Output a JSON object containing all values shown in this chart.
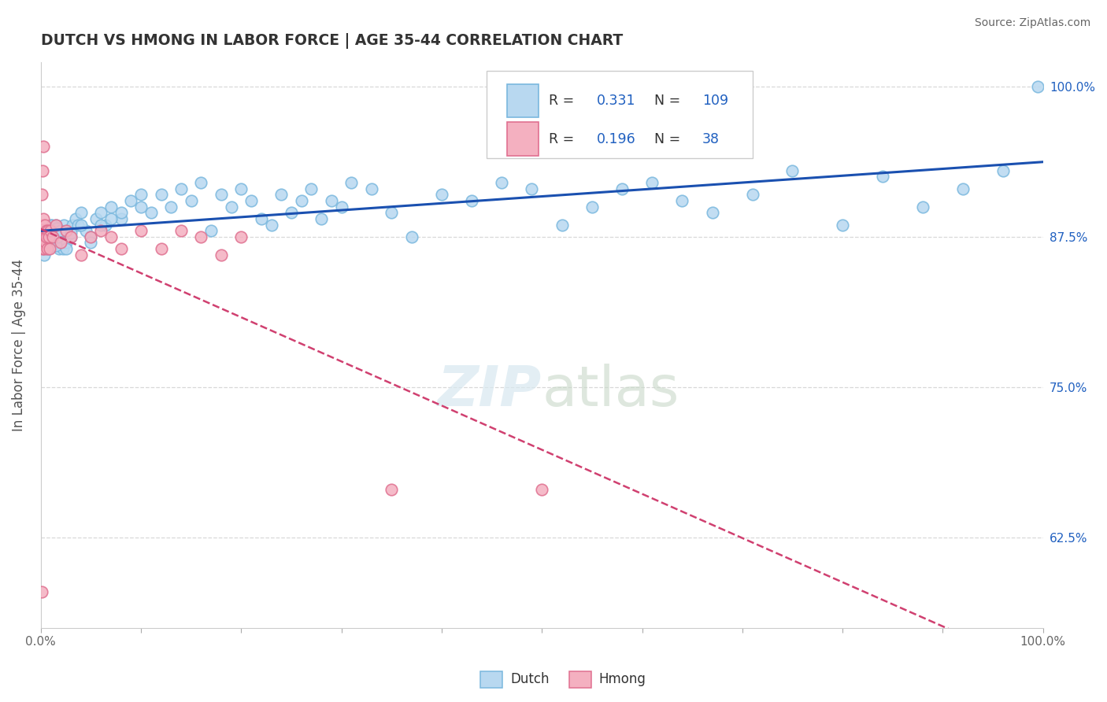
{
  "title": "DUTCH VS HMONG IN LABOR FORCE | AGE 35-44 CORRELATION CHART",
  "source": "Source: ZipAtlas.com",
  "ylabel": "In Labor Force | Age 35-44",
  "yticks": [
    62.5,
    75.0,
    87.5,
    100.0
  ],
  "ytick_labels": [
    "62.5%",
    "75.0%",
    "87.5%",
    "100.0%"
  ],
  "xmin": 0.0,
  "xmax": 100.0,
  "ymin": 55.0,
  "ymax": 102.0,
  "dutch_edge": "#7ab8de",
  "dutch_face": "#b8d8f0",
  "hmong_edge": "#e07090",
  "hmong_face": "#f4b0c0",
  "trend_dutch": "#1a50b0",
  "trend_hmong": "#d04070",
  "dutch_R": "0.331",
  "dutch_N": "109",
  "hmong_R": "0.196",
  "hmong_N": "38",
  "R_color": "#2060c0",
  "N_label_color": "#111111",
  "bg": "#ffffff",
  "grid_color": "#d8d8d8",
  "title_color": "#333333",
  "source_color": "#666666",
  "ylabel_color": "#555555",
  "tick_color": "#2060c0",
  "xtick_color": "#666666",
  "dutch_x": [
    0.1,
    0.15,
    0.2,
    0.25,
    0.3,
    0.35,
    0.4,
    0.5,
    0.5,
    0.6,
    0.7,
    0.8,
    0.9,
    1.0,
    1.0,
    1.1,
    1.2,
    1.3,
    1.4,
    1.5,
    1.6,
    1.7,
    1.8,
    1.9,
    2.0,
    2.1,
    2.2,
    2.3,
    2.5,
    2.7,
    3.0,
    3.2,
    3.5,
    3.7,
    4.0,
    4.5,
    5.0,
    5.5,
    6.0,
    6.5,
    7.0,
    8.0,
    9.0,
    10.0,
    11.0,
    12.0,
    13.0,
    14.0,
    15.0,
    16.0,
    17.0,
    18.0,
    19.0,
    20.0,
    21.0,
    22.0,
    23.0,
    24.0,
    25.0,
    26.0,
    27.0,
    28.0,
    29.0,
    30.0,
    31.0,
    33.0,
    35.0,
    37.0,
    40.0,
    43.0,
    46.0,
    49.0,
    52.0,
    55.0,
    58.0,
    61.0,
    64.0,
    67.0,
    71.0,
    75.0,
    80.0,
    84.0,
    88.0,
    92.0,
    96.0,
    99.5,
    0.3,
    0.4,
    0.5,
    0.6,
    0.7,
    0.8,
    0.9,
    1.0,
    1.1,
    1.2,
    1.3,
    1.4,
    1.5,
    1.6,
    1.7,
    2.0,
    2.5,
    3.0,
    4.0,
    5.0,
    6.0,
    7.0,
    8.0,
    10.0
  ],
  "dutch_y": [
    86.5,
    87.0,
    87.5,
    88.0,
    87.0,
    86.5,
    87.2,
    87.8,
    88.2,
    87.5,
    88.0,
    87.0,
    86.8,
    87.5,
    88.5,
    88.0,
    87.3,
    87.8,
    88.2,
    88.5,
    87.0,
    88.0,
    86.5,
    87.5,
    88.0,
    87.5,
    86.5,
    88.5,
    87.0,
    88.0,
    87.5,
    88.5,
    89.0,
    88.5,
    89.5,
    88.0,
    87.5,
    89.0,
    89.5,
    88.5,
    90.0,
    89.0,
    90.5,
    91.0,
    89.5,
    91.0,
    90.0,
    91.5,
    90.5,
    92.0,
    88.0,
    91.0,
    90.0,
    91.5,
    90.5,
    89.0,
    88.5,
    91.0,
    89.5,
    90.5,
    91.5,
    89.0,
    90.5,
    90.0,
    92.0,
    91.5,
    89.5,
    87.5,
    91.0,
    90.5,
    92.0,
    91.5,
    88.5,
    90.0,
    91.5,
    92.0,
    90.5,
    89.5,
    91.0,
    93.0,
    88.5,
    92.5,
    90.0,
    91.5,
    93.0,
    100.0,
    86.0,
    87.0,
    88.0,
    87.5,
    86.5,
    87.8,
    88.3,
    87.0,
    88.5,
    87.2,
    88.0,
    87.5,
    86.8,
    88.2,
    87.5,
    88.0,
    86.5,
    87.8,
    88.5,
    87.0,
    88.5,
    89.0,
    89.5,
    90.0
  ],
  "hmong_x": [
    0.1,
    0.15,
    0.2,
    0.25,
    0.3,
    0.35,
    0.4,
    0.45,
    0.5,
    0.55,
    0.6,
    0.65,
    0.7,
    0.8,
    0.9,
    1.0,
    1.2,
    1.5,
    2.0,
    2.5,
    3.0,
    4.0,
    5.0,
    6.0,
    7.0,
    8.0,
    10.0,
    12.0,
    14.0,
    16.0,
    18.0,
    20.0,
    35.0,
    50.0,
    0.12,
    0.18,
    0.08,
    0.22
  ],
  "hmong_y": [
    87.5,
    86.5,
    88.5,
    89.0,
    87.0,
    86.5,
    87.5,
    88.5,
    87.0,
    88.0,
    87.5,
    86.5,
    88.0,
    87.5,
    86.5,
    88.0,
    87.5,
    88.5,
    87.0,
    88.0,
    87.5,
    86.0,
    87.5,
    88.0,
    87.5,
    86.5,
    88.0,
    86.5,
    88.0,
    87.5,
    86.0,
    87.5,
    66.5,
    66.5,
    58.0,
    93.0,
    91.0,
    95.0
  ]
}
